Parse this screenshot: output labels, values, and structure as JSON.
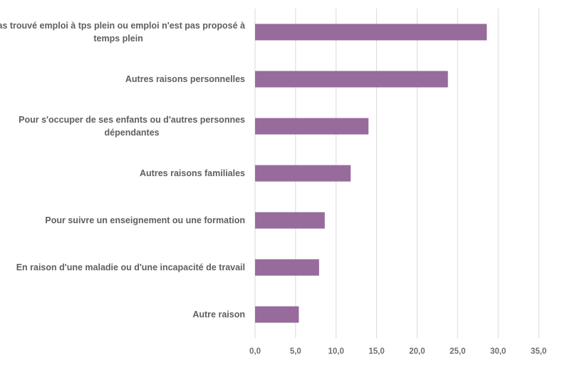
{
  "chart_data": {
    "type": "bar",
    "orientation": "horizontal",
    "categories": [
      [
        "Pas trouvé emploi à tps plein ou emploi  n'est pas proposé à",
        "temps plein"
      ],
      [
        "Autres raisons personnelles"
      ],
      [
        "Pour s'occuper de ses enfants ou d'autres personnes",
        "dépendantes"
      ],
      [
        "Autres raisons familiales"
      ],
      [
        "Pour suivre un enseignement ou une formation"
      ],
      [
        "En raison d'une maladie ou d'une incapacité de travail"
      ],
      [
        "Autre raison"
      ]
    ],
    "values": [
      28.6,
      23.8,
      14.0,
      11.8,
      8.6,
      7.9,
      5.4
    ],
    "xlim": [
      0,
      35
    ],
    "xticks": [
      "0,0",
      "5,0",
      "10,0",
      "15,0",
      "20,0",
      "25,0",
      "30,0",
      "35,0"
    ],
    "grid": true,
    "bar_color": "#976b9c",
    "title": "",
    "xlabel": "",
    "ylabel": ""
  }
}
